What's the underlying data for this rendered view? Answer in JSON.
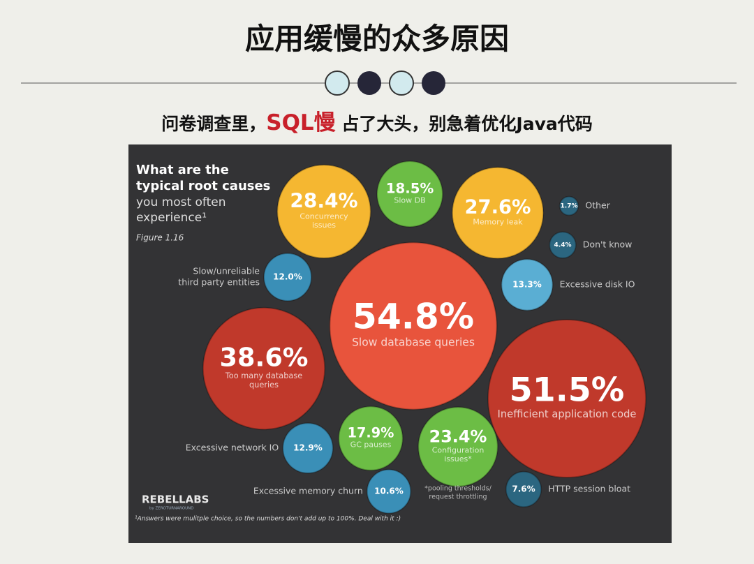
{
  "header": {
    "title": "应用缓慢的众多原因",
    "subtitle": {
      "before": "问卷调查里，",
      "highlight": "SQL慢",
      "after": "占了大头，别急着优化Java代码"
    }
  },
  "infographic": {
    "heading": {
      "bold": [
        "What are the",
        "typical root causes"
      ],
      "light": [
        "you most often",
        "experience¹"
      ],
      "figure": "Figure 1.16"
    },
    "bubbles": [
      {
        "value": 28.4,
        "value_label": "28.4%",
        "label": [
          "Concurrency",
          "issues"
        ],
        "color": "#f5b731"
      },
      {
        "value": 18.5,
        "value_label": "18.5%",
        "label": [
          "Slow DB"
        ],
        "color": "#6cbd45"
      },
      {
        "value": 27.6,
        "value_label": "27.6%",
        "label": [
          "Memory leak"
        ],
        "color": "#f5b731"
      },
      {
        "value": 1.7,
        "value_label": "1.7%",
        "label": [
          "Other"
        ],
        "color": "#2b6680"
      },
      {
        "value": 4.4,
        "value_label": "4.4%",
        "label": [
          "Don't know"
        ],
        "color": "#2b6680"
      },
      {
        "value": 12.0,
        "value_label": "12.0%",
        "label": [
          "Slow/unreliable",
          "third party entities"
        ],
        "color": "#3a8fb7"
      },
      {
        "value": 13.3,
        "value_label": "13.3%",
        "label": [
          "Excessive disk IO"
        ],
        "color": "#5aaed3"
      },
      {
        "value": 54.8,
        "value_label": "54.8%",
        "label": [
          "Slow database queries"
        ],
        "color": "#e8543c"
      },
      {
        "value": 38.6,
        "value_label": "38.6%",
        "label": [
          "Too many database",
          "queries"
        ],
        "color": "#c0392b"
      },
      {
        "value": 51.5,
        "value_label": "51.5%",
        "label": [
          "Inefficient application code"
        ],
        "color": "#c0392b"
      },
      {
        "value": 12.9,
        "value_label": "12.9%",
        "label": [
          "Excessive network IO"
        ],
        "color": "#3a8fb7"
      },
      {
        "value": 17.9,
        "value_label": "17.9%",
        "label": [
          "GC pauses"
        ],
        "color": "#6cbd45"
      },
      {
        "value": 23.4,
        "value_label": "23.4%",
        "label": [
          "Configuration",
          "issues*"
        ],
        "color": "#6cbd45"
      },
      {
        "value": 10.6,
        "value_label": "10.6%",
        "label": [
          "Excessive memory churn"
        ],
        "color": "#3a8fb7"
      },
      {
        "value": 7.6,
        "value_label": "7.6%",
        "label": [
          "HTTP session bloat"
        ],
        "color": "#2b6680"
      }
    ],
    "config_note": [
      "*pooling thresholds/",
      "request throttling"
    ],
    "logo": {
      "name": "REBELLABS",
      "by": "by ZEROTURNAROUND"
    },
    "footnote": "¹Answers were mulitple choice, so the numbers don't add up to 100%. Deal with it :)"
  }
}
